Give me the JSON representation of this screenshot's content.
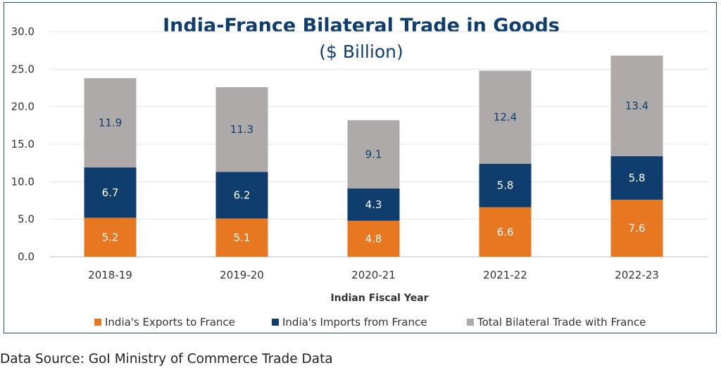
{
  "chart_data": {
    "type": "bar",
    "stacked": true,
    "title": "India-France Bilateral Trade in Goods",
    "subtitle": "($ Billion)",
    "xlabel": "Indian Fiscal Year",
    "ylabel": "",
    "categories": [
      "2018-19",
      "2019-20",
      "2020-21",
      "2021-22",
      "2022-23"
    ],
    "y_ticks": [
      "0.0",
      "5.0",
      "10.0",
      "15.0",
      "20.0",
      "25.0",
      "30.0"
    ],
    "ylim": [
      0,
      30
    ],
    "grid": true,
    "legend_position": "bottom",
    "series": [
      {
        "name": "India's Exports to France",
        "color": "#e87722",
        "label_style": "light",
        "values": [
          5.2,
          5.1,
          4.8,
          6.6,
          7.6
        ],
        "labels": [
          "5.2",
          "5.1",
          "4.8",
          "6.6",
          "7.6"
        ]
      },
      {
        "name": "India's Imports from France",
        "color": "#0e3d6e",
        "label_style": "light",
        "values": [
          6.7,
          6.2,
          4.3,
          5.8,
          5.8
        ],
        "labels": [
          "6.7",
          "6.2",
          "4.3",
          "5.8",
          "5.8"
        ]
      },
      {
        "name": "Total Bilateral Trade with France",
        "color": "#aeaaaa",
        "label_style": "dark",
        "values": [
          11.9,
          11.3,
          9.1,
          12.4,
          13.4
        ],
        "labels": [
          "11.9",
          "11.3",
          "9.1",
          "12.4",
          "13.4"
        ]
      }
    ]
  },
  "source": "Data Source: GoI Ministry of Commerce Trade Data"
}
